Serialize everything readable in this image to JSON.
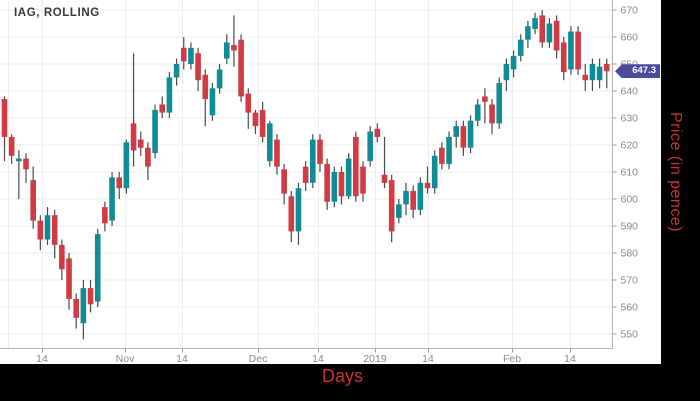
{
  "title": "IAG, ROLLING",
  "axes": {
    "x_label": "Days",
    "y_label": "Price (in pence)",
    "x_ticks": [
      {
        "label": "14",
        "x": 42
      },
      {
        "label": "Nov",
        "x": 125
      },
      {
        "label": "14",
        "x": 182
      },
      {
        "label": "Dec",
        "x": 258
      },
      {
        "label": "14",
        "x": 318
      },
      {
        "label": "2019",
        "x": 375
      },
      {
        "label": "14",
        "x": 428
      },
      {
        "label": "Feb",
        "x": 512
      },
      {
        "label": "14",
        "x": 570
      }
    ],
    "extra_gridline_x": 8,
    "y_ticks": [
      550,
      560,
      570,
      580,
      590,
      600,
      610,
      620,
      630,
      640,
      650,
      660,
      670
    ]
  },
  "last_price_badge": {
    "value": "647.3",
    "color": "#4b4a9d"
  },
  "colors": {
    "up": "#0f8c96",
    "down": "#d03b44",
    "wick": "#4a4a4a",
    "grid": "#ededed",
    "axis_line": "#b3b3b3",
    "tick_mark": "#999999",
    "tick_text": "#8a8a8a",
    "title_text": "#3a3a3a",
    "axis_label": "#c63232",
    "badge_bg": "#4b4a9d",
    "panel_bg": "#ffffff",
    "page_bg": "#000000"
  },
  "chart_data": {
    "type": "candlestick",
    "title": "IAG, ROLLING",
    "xlabel": "Days",
    "ylabel": "Price (in pence)",
    "x_unit": "daily candles, mid-Oct 2018 to late Feb 2019",
    "x_tick_labels": [
      "14",
      "Nov",
      "14",
      "Dec",
      "14",
      "2019",
      "14",
      "Feb",
      "14"
    ],
    "ylim": [
      544,
      674
    ],
    "grid": true,
    "last_price": 647.3,
    "up_means": "close >= open (teal)",
    "candles_format": [
      "open",
      "high",
      "low",
      "close"
    ],
    "candles": [
      [
        637,
        638,
        614,
        623
      ],
      [
        623,
        624,
        613,
        616
      ],
      [
        614,
        618,
        600,
        615
      ],
      [
        615,
        617,
        606,
        611
      ],
      [
        607,
        612,
        589,
        592
      ],
      [
        592,
        594,
        581,
        585
      ],
      [
        585,
        597,
        583,
        594
      ],
      [
        594,
        596,
        578,
        583
      ],
      [
        583,
        585,
        570,
        574
      ],
      [
        578,
        580,
        559,
        563
      ],
      [
        563,
        565,
        552,
        556
      ],
      [
        554,
        570,
        548,
        567
      ],
      [
        567,
        570,
        558,
        561
      ],
      [
        562,
        589,
        560,
        587
      ],
      [
        597,
        599,
        588,
        591
      ],
      [
        592,
        610,
        590,
        608
      ],
      [
        608,
        610,
        600,
        604
      ],
      [
        604,
        622,
        602,
        621
      ],
      [
        628,
        654,
        612,
        618
      ],
      [
        622,
        625,
        616,
        619
      ],
      [
        619,
        621,
        607,
        612
      ],
      [
        617,
        635,
        615,
        633
      ],
      [
        635,
        638,
        630,
        632
      ],
      [
        632,
        647,
        630,
        645
      ],
      [
        645,
        652,
        642,
        650
      ],
      [
        656,
        660,
        648,
        651
      ],
      [
        650,
        658,
        648,
        656
      ],
      [
        654,
        656,
        640,
        644
      ],
      [
        646,
        648,
        627,
        637
      ],
      [
        631,
        643,
        629,
        641
      ],
      [
        641,
        650,
        639,
        648
      ],
      [
        652,
        661,
        650,
        658
      ],
      [
        657,
        668,
        649,
        655
      ],
      [
        659,
        661,
        636,
        638
      ],
      [
        639,
        641,
        626,
        632
      ],
      [
        632,
        633,
        624,
        627
      ],
      [
        633,
        636,
        621,
        623
      ],
      [
        614,
        629,
        612,
        628
      ],
      [
        622,
        624,
        609,
        612
      ],
      [
        611,
        613,
        598,
        602
      ],
      [
        601,
        603,
        584,
        588
      ],
      [
        588,
        606,
        583,
        604
      ],
      [
        612,
        614,
        603,
        606
      ],
      [
        606,
        624,
        604,
        622
      ],
      [
        622,
        624,
        610,
        613
      ],
      [
        613,
        615,
        596,
        599
      ],
      [
        599,
        612,
        597,
        610
      ],
      [
        610,
        612,
        598,
        601
      ],
      [
        601,
        617,
        600,
        615
      ],
      [
        623,
        625,
        599,
        601
      ],
      [
        612,
        614,
        599,
        602
      ],
      [
        614,
        627,
        612,
        625
      ],
      [
        626,
        628,
        621,
        623
      ],
      [
        609,
        623,
        604,
        606
      ],
      [
        607,
        609,
        584,
        588
      ],
      [
        593,
        600,
        591,
        598
      ],
      [
        598,
        606,
        594,
        603
      ],
      [
        603,
        605,
        593,
        596
      ],
      [
        596,
        608,
        594,
        606
      ],
      [
        606,
        612,
        602,
        604
      ],
      [
        604,
        618,
        602,
        616
      ],
      [
        619,
        621,
        611,
        613
      ],
      [
        613,
        625,
        611,
        623
      ],
      [
        623,
        629,
        619,
        627
      ],
      [
        627,
        629,
        616,
        619
      ],
      [
        619,
        631,
        617,
        629
      ],
      [
        629,
        637,
        627,
        635
      ],
      [
        638,
        641,
        628,
        636
      ],
      [
        635,
        637,
        624,
        628
      ],
      [
        628,
        645,
        626,
        643
      ],
      [
        644,
        652,
        640,
        650
      ],
      [
        648,
        655,
        645,
        653
      ],
      [
        653,
        661,
        651,
        659
      ],
      [
        659,
        666,
        656,
        664
      ],
      [
        663,
        669,
        661,
        667
      ],
      [
        668,
        670,
        656,
        658
      ],
      [
        658,
        667,
        656,
        665
      ],
      [
        666,
        668,
        652,
        655
      ],
      [
        658,
        660,
        644,
        647
      ],
      [
        648,
        664,
        646,
        662
      ],
      [
        662,
        664,
        646,
        648
      ],
      [
        646,
        650,
        640,
        644
      ],
      [
        644,
        652,
        640,
        650
      ],
      [
        644,
        652,
        641,
        649
      ],
      [
        650,
        652,
        641,
        647.3
      ]
    ]
  }
}
